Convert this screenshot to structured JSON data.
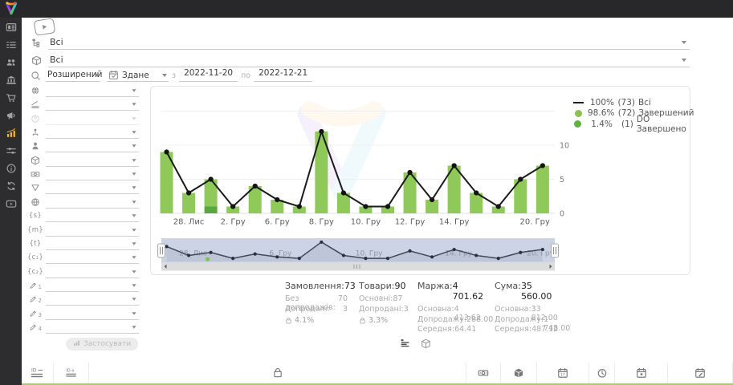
{
  "topbar": {
    "logo": "brand-logo"
  },
  "sidebar": {
    "items": [
      {
        "icon": "kanban"
      },
      {
        "icon": "list"
      },
      {
        "icon": "users"
      },
      {
        "icon": "building"
      },
      {
        "icon": "cart"
      },
      {
        "icon": "megaphone"
      },
      {
        "icon": "chart",
        "active": true
      },
      {
        "icon": "sliders"
      },
      {
        "icon": "info"
      },
      {
        "icon": "sync"
      },
      {
        "icon": "video"
      }
    ]
  },
  "filters": {
    "row1": {
      "icon": "sitemap",
      "value": "Всі"
    },
    "row2": {
      "icon": "cube",
      "value": "Всі"
    },
    "search_row": {
      "icon": "search",
      "mode": "Розширений",
      "date_field_icon": "calendar-check",
      "date_field": "Здане",
      "from_label": "з",
      "from_value": "2022-11-20",
      "to_label": "по",
      "to_value": "2022-12-21"
    },
    "side_rows": [
      {
        "icon": "globe-solid"
      },
      {
        "icon": "ruler"
      },
      {
        "icon": "question",
        "disabled": true
      },
      {
        "icon": "org-person"
      },
      {
        "icon": "person"
      },
      {
        "icon": "cube"
      },
      {
        "icon": "banknote"
      },
      {
        "icon": "funnel"
      },
      {
        "icon": "globe-grid"
      },
      {
        "icon": "braces-s",
        "text": "{s}"
      },
      {
        "icon": "braces-m",
        "text": "{m}"
      },
      {
        "icon": "braces-t",
        "text": "{t}"
      },
      {
        "icon": "braces-c1",
        "text": "{c₁}"
      },
      {
        "icon": "braces-c2",
        "text": "{c₂}"
      },
      {
        "icon": "pencil-1",
        "sub": "1"
      },
      {
        "icon": "pencil-2",
        "sub": "2"
      },
      {
        "icon": "pencil-3",
        "sub": "3"
      },
      {
        "icon": "pencil-4",
        "sub": "4"
      }
    ],
    "apply_label": "Застосувати"
  },
  "chart_data": {
    "type": "bar",
    "subtype": "stacked-bars-with-line",
    "ylim": [
      0,
      15
    ],
    "yticks": [
      0,
      5,
      10
    ],
    "grid": true,
    "legend_position": "top-right",
    "x_tick_labels": [
      {
        "index": 1,
        "label": "28. Лис"
      },
      {
        "index": 3,
        "label": "2. Гру"
      },
      {
        "index": 5,
        "label": "6. Гру"
      },
      {
        "index": 7,
        "label": "8. Гру"
      },
      {
        "index": 9,
        "label": "10. Гру"
      },
      {
        "index": 11,
        "label": "12. Гру"
      },
      {
        "index": 13,
        "label": "14. Гру"
      },
      {
        "index": 16.65,
        "label": "20. Гру"
      }
    ],
    "series": [
      {
        "name": "Всі",
        "type": "line",
        "color": "#1b1b1b",
        "values": [
          9,
          3,
          5,
          1,
          4,
          2,
          1,
          12,
          3,
          1,
          1,
          6,
          2,
          7,
          3,
          1,
          5,
          7
        ]
      },
      {
        "name": "Завершений",
        "type": "bar",
        "color": "#8ec959",
        "values": [
          9,
          3,
          4,
          1,
          4,
          2,
          1,
          12,
          3,
          1,
          1,
          6,
          2,
          7,
          3,
          1,
          5,
          7
        ]
      },
      {
        "name": "DO Завершено",
        "type": "bar",
        "color": "#57a83e",
        "values": [
          0,
          0,
          1,
          0,
          0,
          0,
          0,
          0,
          0,
          0,
          0,
          0,
          0,
          0,
          0,
          0,
          0,
          0
        ]
      }
    ],
    "navigator": {
      "labels": [
        {
          "index": 1.2,
          "label": "28. Лис"
        },
        {
          "index": 5.15,
          "label": "6. Гру"
        },
        {
          "index": 9.15,
          "label": "10. Гру"
        },
        {
          "index": 13.2,
          "label": "14. Гру"
        },
        {
          "index": 16.9,
          "label": "20. Гру"
        }
      ],
      "green_marker_index": 2
    }
  },
  "legend": [
    {
      "marker": "line",
      "color": "#1b1b1b",
      "pct": "100%",
      "count": "(73)",
      "name": "Всі"
    },
    {
      "marker": "dot",
      "color": "#8cc152",
      "pct": "98.6%",
      "count": "(72)",
      "name": "Завершений"
    },
    {
      "marker": "dot",
      "color": "#5fb23e",
      "pct": "1.4%",
      "count": "(1)",
      "name": "DO Завершено"
    }
  ],
  "stats": {
    "columns": [
      {
        "title": "Замовлення:",
        "value": "73",
        "rows": [
          {
            "label": "Без допродажів:",
            "value": "70"
          },
          {
            "label": "Допродані:",
            "value": "3"
          }
        ],
        "badge": "4.1%"
      },
      {
        "title": "Товари:",
        "value": "90",
        "rows": [
          {
            "label": "Основні:",
            "value": "87"
          },
          {
            "label": "Допродані:",
            "value": "3"
          }
        ],
        "badge": "3.3%"
      },
      {
        "title": "Маржа:",
        "value": "4 701.62",
        "rows": [
          {
            "label": "Основна:",
            "value": "4 413.62"
          },
          {
            "label": "Допродажу:",
            "value": "288.00"
          },
          {
            "label": "Середня:",
            "value": "64.41"
          }
        ]
      },
      {
        "title": "Сума:",
        "value": "35 560.00",
        "rows": [
          {
            "label": "Основна:",
            "value": "33 812.00"
          },
          {
            "label": "Допродажу:",
            "value": "1 748.00"
          },
          {
            "label": "Середня:",
            "value": "487.12"
          }
        ]
      }
    ]
  },
  "panel_toggles": [
    {
      "icon": "list-chart"
    },
    {
      "icon": "cube"
    }
  ],
  "table_header": {
    "cells": [
      {
        "icon": "id-lines"
      },
      {
        "icon": "id-o"
      },
      {
        "icon": "bag"
      },
      {
        "icon": "money"
      },
      {
        "icon": "cube-solid"
      },
      {
        "icon": "calendar-17"
      },
      {
        "icon": "clock"
      },
      {
        "icon": "calendar-box"
      },
      {
        "icon": "calendar-edit"
      }
    ]
  }
}
